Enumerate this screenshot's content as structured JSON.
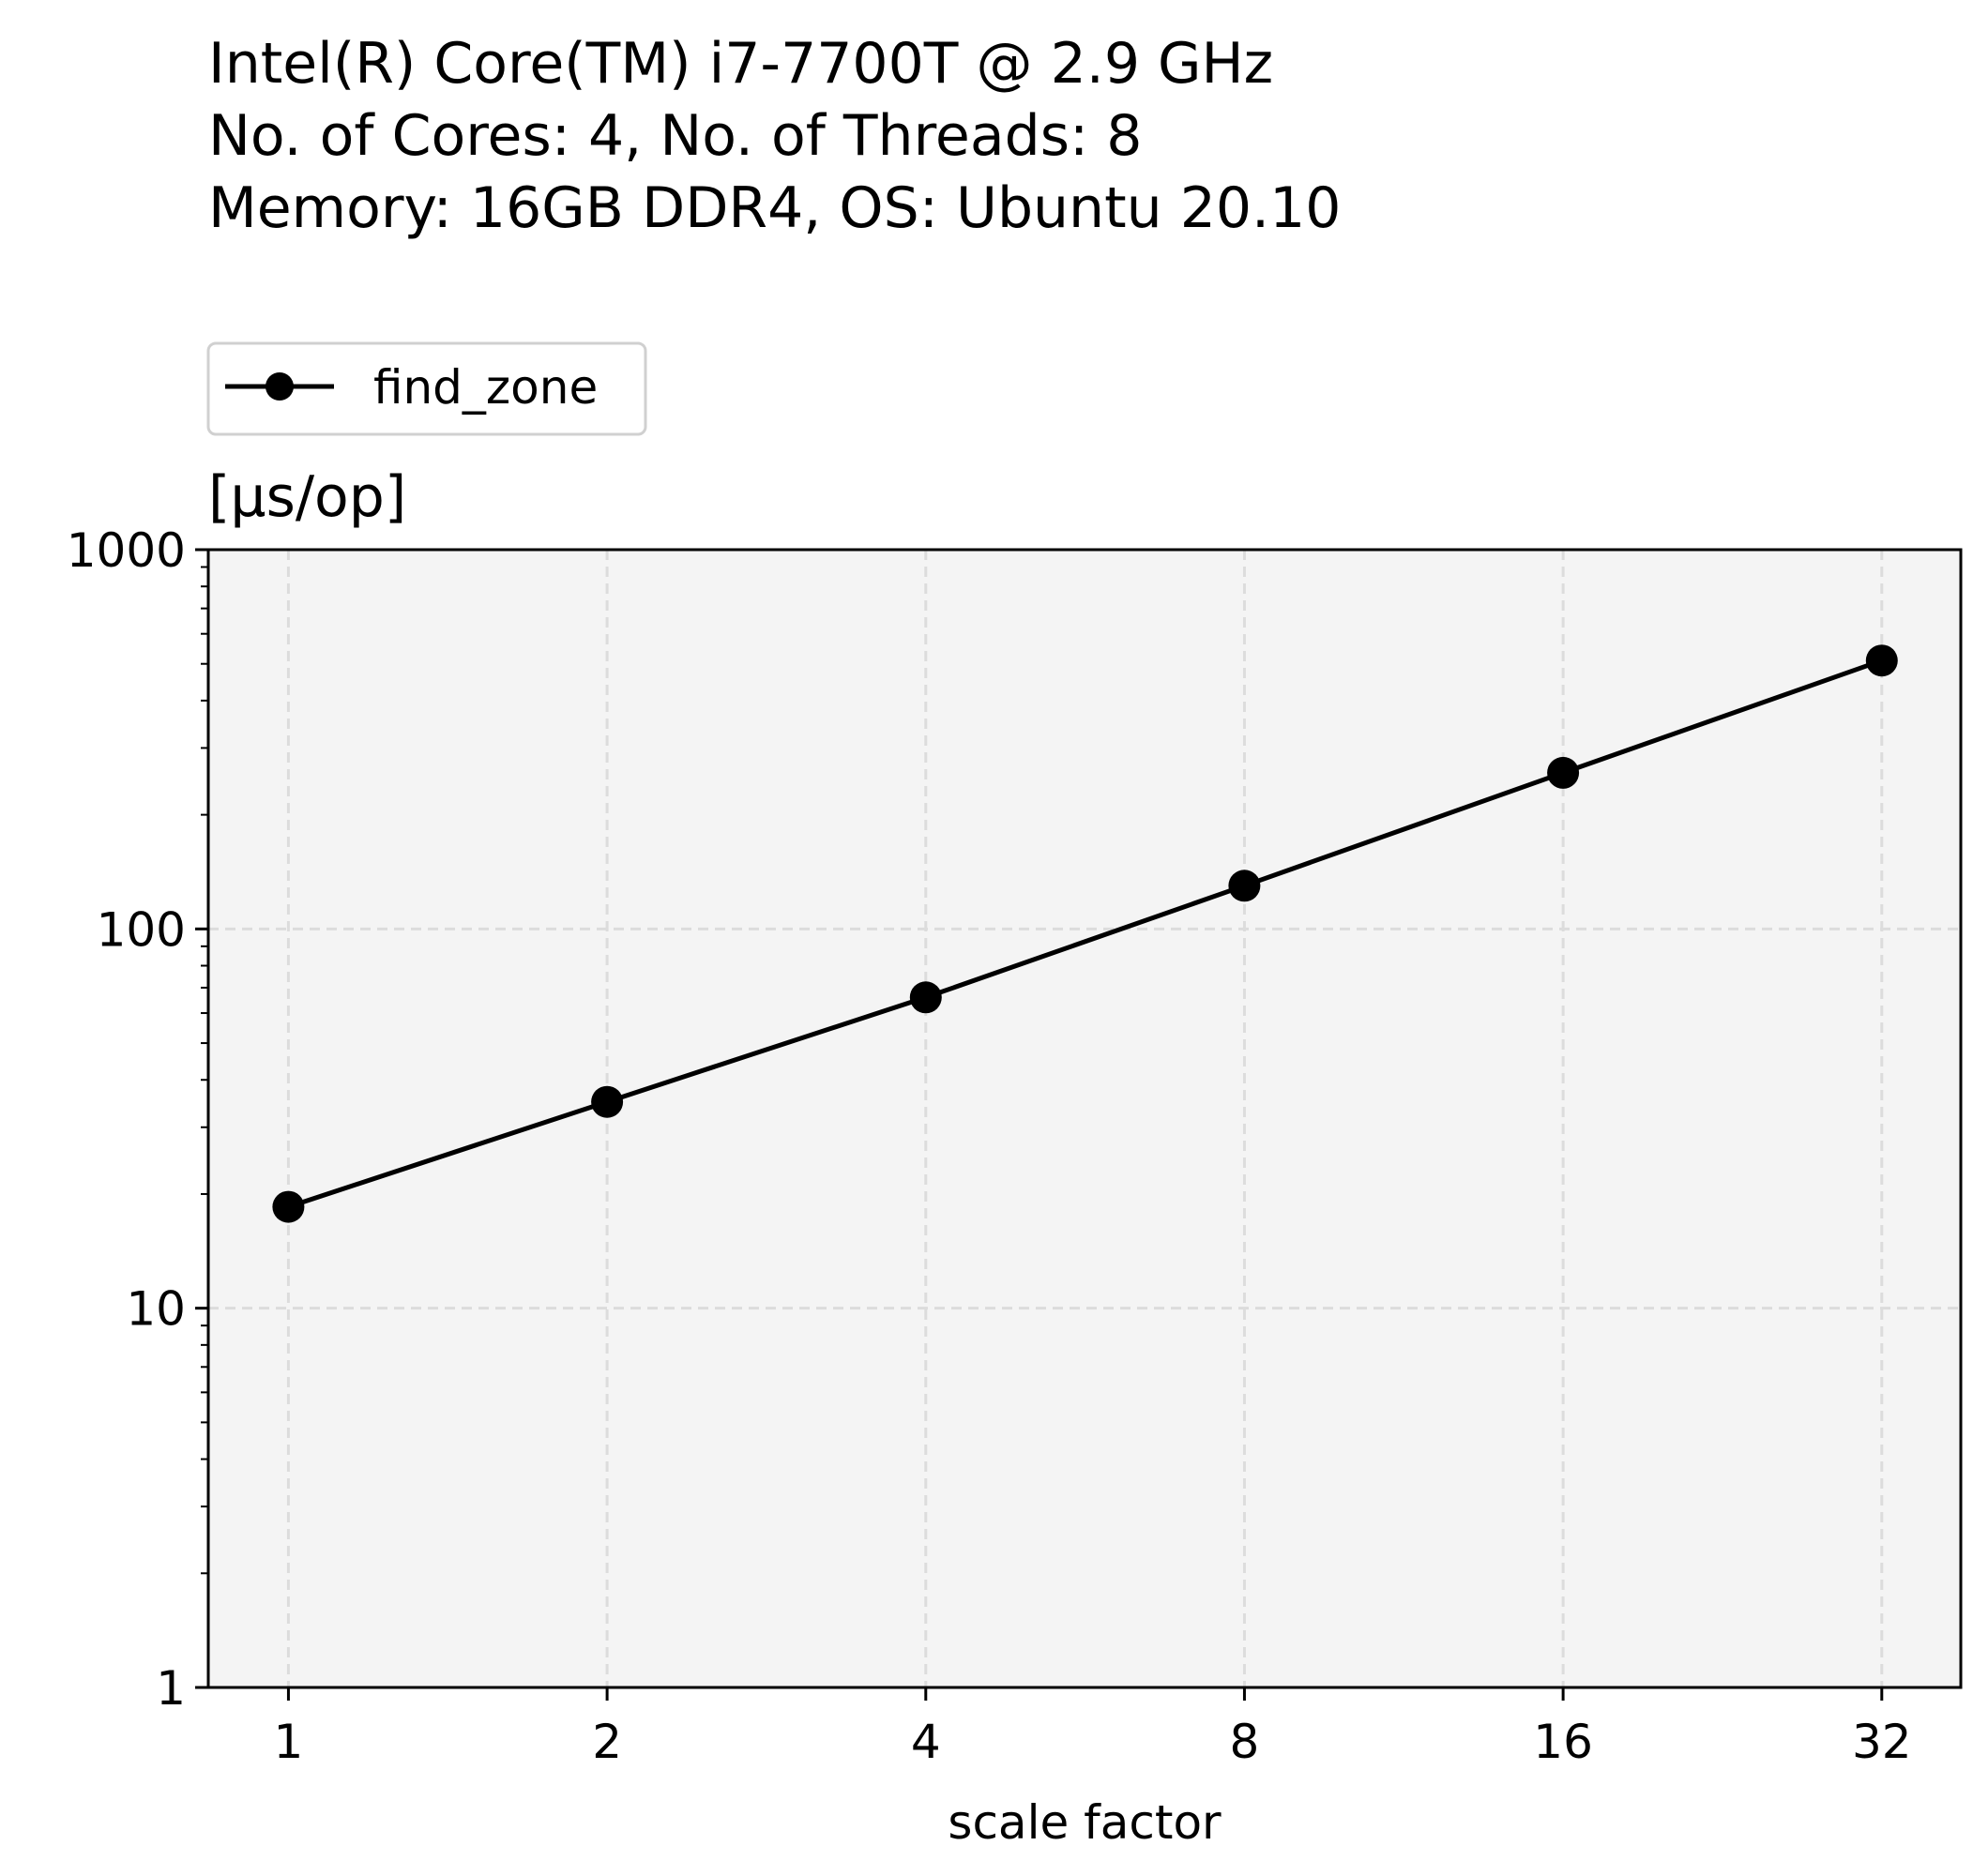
{
  "title_lines": [
    "Intel(R) Core(TM) i7-7700T @ 2.9 GHz",
    "No. of Cores: 4, No. of Threads: 8",
    "Memory: 16GB DDR4, OS: Ubuntu 20.10"
  ],
  "colors": {
    "plot_background": "#f4f4f4",
    "series": "#000000",
    "grid": "#dcdcdc",
    "legend_border": "#d0d0d0"
  },
  "chart_data": {
    "type": "line",
    "unit_label": "[µs/op]",
    "xlabel": "scale factor",
    "ylabel": "",
    "x_scale": "log2",
    "y_scale": "log10",
    "x": [
      1,
      2,
      4,
      8,
      16,
      32
    ],
    "x_tick_labels": [
      "1",
      "2",
      "4",
      "8",
      "16",
      "32"
    ],
    "y_ticks": [
      1,
      10,
      100,
      1000
    ],
    "y_tick_labels": [
      "1",
      "10",
      "100",
      "1000"
    ],
    "ylim": [
      1,
      1000
    ],
    "xlim": [
      0.84,
      38.0
    ],
    "grid": true,
    "legend_position": "top-left, above plot",
    "series": [
      {
        "name": "find_zone",
        "marker": "circle",
        "values": [
          18.5,
          35,
          66,
          130,
          258,
          510
        ]
      }
    ]
  }
}
